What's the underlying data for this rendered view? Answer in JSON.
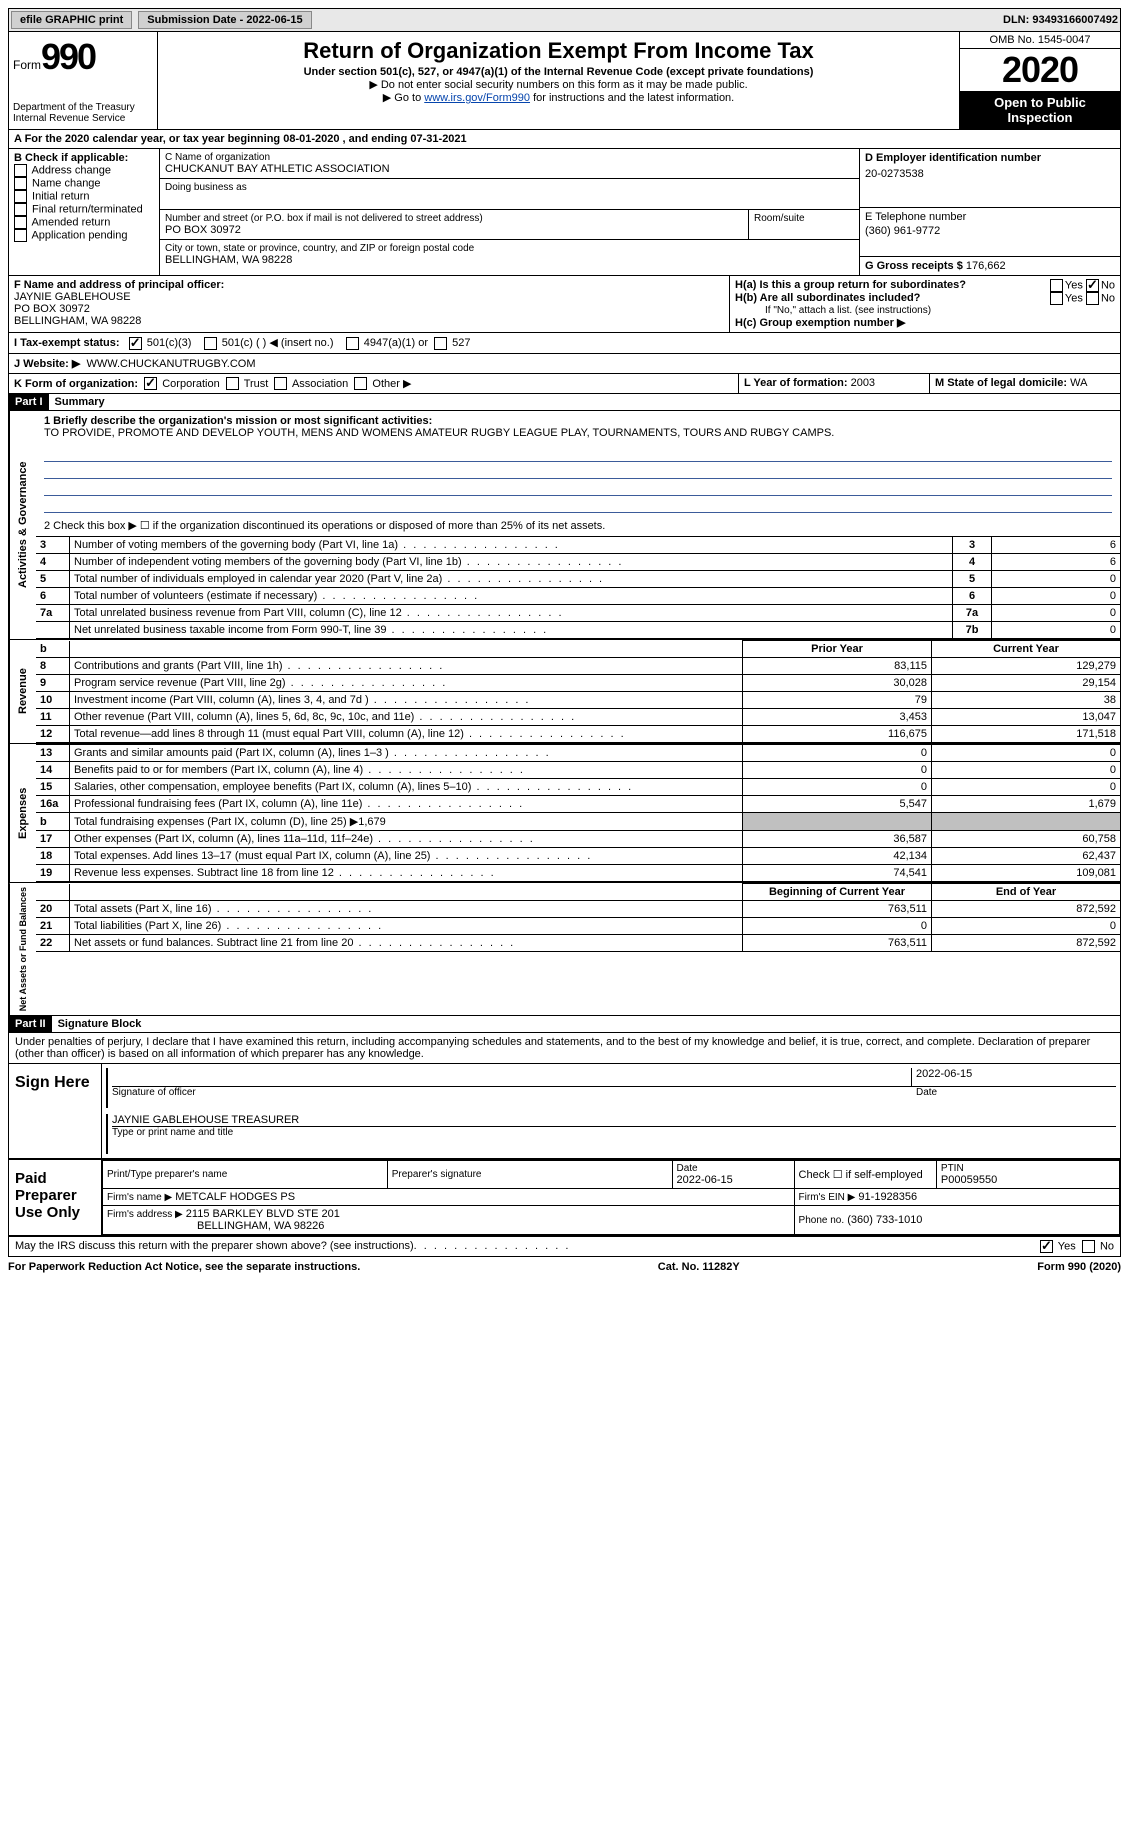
{
  "topbar": {
    "efile_label": "efile GRAPHIC print",
    "submission_label": "Submission Date - 2022-06-15",
    "dln_label": "DLN: 93493166007492"
  },
  "header": {
    "form_word": "Form",
    "form_num": "990",
    "dept": "Department of the Treasury\nInternal Revenue Service",
    "title": "Return of Organization Exempt From Income Tax",
    "subtitle": "Under section 501(c), 527, or 4947(a)(1) of the Internal Revenue Code (except private foundations)",
    "instr1": "▶ Do not enter social security numbers on this form as it may be made public.",
    "instr2_pre": "▶ Go to ",
    "instr2_link": "www.irs.gov/Form990",
    "instr2_post": " for instructions and the latest information.",
    "omb": "OMB No. 1545-0047",
    "taxyear": "2020",
    "open_public": "Open to Public Inspection"
  },
  "period": {
    "text_a": "A For the 2020 calendar year, or tax year beginning ",
    "begin": "08-01-2020",
    "text_b": " , and ending ",
    "end": "07-31-2021"
  },
  "boxB": {
    "label": "B Check if applicable:",
    "items": [
      "Address change",
      "Name change",
      "Initial return",
      "Final return/terminated",
      "Amended return",
      "Application pending"
    ]
  },
  "boxC": {
    "label": "C Name of organization",
    "name": "CHUCKANUT BAY ATHLETIC ASSOCIATION",
    "dba_label": "Doing business as",
    "street_label": "Number and street (or P.O. box if mail is not delivered to street address)",
    "room_label": "Room/suite",
    "street": "PO BOX 30972",
    "city_label": "City or town, state or province, country, and ZIP or foreign postal code",
    "city": "BELLINGHAM, WA  98228"
  },
  "boxD": {
    "label": "D Employer identification number",
    "value": "20-0273538"
  },
  "boxE": {
    "label": "E Telephone number",
    "value": "(360) 961-9772"
  },
  "boxG": {
    "label": "G Gross receipts $",
    "value": "176,662"
  },
  "boxF": {
    "label": "F Name and address of principal officer:",
    "name": "JAYNIE GABLEHOUSE",
    "street": "PO BOX 30972",
    "city": "BELLINGHAM, WA  98228"
  },
  "boxH": {
    "a_label": "H(a)  Is this a group return for subordinates?",
    "b_label": "H(b)  Are all subordinates included?",
    "b_note": "If \"No,\" attach a list. (see instructions)",
    "c_label": "H(c)  Group exemption number ▶",
    "yes": "Yes",
    "no": "No"
  },
  "boxI": {
    "label": "I  Tax-exempt status:",
    "opts": [
      "501(c)(3)",
      "501(c) (  ) ◀ (insert no.)",
      "4947(a)(1) or",
      "527"
    ]
  },
  "boxJ": {
    "label": "J  Website: ▶",
    "value": "WWW.CHUCKANUTRUGBY.COM"
  },
  "boxK": {
    "label": "K Form of organization:",
    "opts": [
      "Corporation",
      "Trust",
      "Association",
      "Other ▶"
    ]
  },
  "boxL": {
    "label": "L Year of formation:",
    "value": "2003"
  },
  "boxM": {
    "label": "M State of legal domicile:",
    "value": "WA"
  },
  "part1": {
    "bar": "Part I",
    "title": "Summary",
    "line1_label": "1  Briefly describe the organization's mission or most significant activities:",
    "mission": "TO PROVIDE, PROMOTE AND DEVELOP YOUTH, MENS AND WOMENS AMATEUR RUGBY LEAGUE PLAY, TOURNAMENTS, TOURS AND RUBGY CAMPS.",
    "line2": "2  Check this box ▶ ☐ if the organization discontinued its operations or disposed of more than 25% of its net assets.",
    "gov_rows": [
      {
        "n": "3",
        "label": "Number of voting members of the governing body (Part VI, line 1a)",
        "box": "3",
        "val": "6"
      },
      {
        "n": "4",
        "label": "Number of independent voting members of the governing body (Part VI, line 1b)",
        "box": "4",
        "val": "6"
      },
      {
        "n": "5",
        "label": "Total number of individuals employed in calendar year 2020 (Part V, line 2a)",
        "box": "5",
        "val": "0"
      },
      {
        "n": "6",
        "label": "Total number of volunteers (estimate if necessary)",
        "box": "6",
        "val": "0"
      },
      {
        "n": "7a",
        "label": "Total unrelated business revenue from Part VIII, column (C), line 12",
        "box": "7a",
        "val": "0"
      },
      {
        "n": "",
        "label": "Net unrelated business taxable income from Form 990-T, line 39",
        "box": "7b",
        "val": "0"
      }
    ],
    "col_prior": "Prior Year",
    "col_current": "Current Year",
    "col_begin": "Beginning of Current Year",
    "col_end": "End of Year",
    "rev_label": "Revenue",
    "exp_label": "Expenses",
    "net_label": "Net Assets or Fund Balances",
    "gov_label": "Activities & Governance",
    "rev_rows": [
      {
        "n": "8",
        "label": "Contributions and grants (Part VIII, line 1h)",
        "py": "83,115",
        "cy": "129,279"
      },
      {
        "n": "9",
        "label": "Program service revenue (Part VIII, line 2g)",
        "py": "30,028",
        "cy": "29,154"
      },
      {
        "n": "10",
        "label": "Investment income (Part VIII, column (A), lines 3, 4, and 7d )",
        "py": "79",
        "cy": "38"
      },
      {
        "n": "11",
        "label": "Other revenue (Part VIII, column (A), lines 5, 6d, 8c, 9c, 10c, and 11e)",
        "py": "3,453",
        "cy": "13,047"
      },
      {
        "n": "12",
        "label": "Total revenue—add lines 8 through 11 (must equal Part VIII, column (A), line 12)",
        "py": "116,675",
        "cy": "171,518"
      }
    ],
    "exp_rows": [
      {
        "n": "13",
        "label": "Grants and similar amounts paid (Part IX, column (A), lines 1–3 )",
        "py": "0",
        "cy": "0"
      },
      {
        "n": "14",
        "label": "Benefits paid to or for members (Part IX, column (A), line 4)",
        "py": "0",
        "cy": "0"
      },
      {
        "n": "15",
        "label": "Salaries, other compensation, employee benefits (Part IX, column (A), lines 5–10)",
        "py": "0",
        "cy": "0"
      },
      {
        "n": "16a",
        "label": "Professional fundraising fees (Part IX, column (A), line 11e)",
        "py": "5,547",
        "cy": "1,679"
      },
      {
        "n": "b",
        "label": "Total fundraising expenses (Part IX, column (D), line 25) ▶1,679",
        "py": "",
        "cy": "",
        "shade": true
      },
      {
        "n": "17",
        "label": "Other expenses (Part IX, column (A), lines 11a–11d, 11f–24e)",
        "py": "36,587",
        "cy": "60,758"
      },
      {
        "n": "18",
        "label": "Total expenses. Add lines 13–17 (must equal Part IX, column (A), line 25)",
        "py": "42,134",
        "cy": "62,437"
      },
      {
        "n": "19",
        "label": "Revenue less expenses. Subtract line 18 from line 12",
        "py": "74,541",
        "cy": "109,081"
      }
    ],
    "net_rows": [
      {
        "n": "20",
        "label": "Total assets (Part X, line 16)",
        "py": "763,511",
        "cy": "872,592"
      },
      {
        "n": "21",
        "label": "Total liabilities (Part X, line 26)",
        "py": "0",
        "cy": "0"
      },
      {
        "n": "22",
        "label": "Net assets or fund balances. Subtract line 21 from line 20",
        "py": "763,511",
        "cy": "872,592"
      }
    ]
  },
  "part2": {
    "bar": "Part II",
    "title": "Signature Block",
    "decl": "Under penalties of perjury, I declare that I have examined this return, including accompanying schedules and statements, and to the best of my knowledge and belief, it is true, correct, and complete. Declaration of preparer (other than officer) is based on all information of which preparer has any knowledge.",
    "sign_here": "Sign Here",
    "sig_officer_label": "Signature of officer",
    "sig_date_label": "Date",
    "sig_date": "2022-06-15",
    "officer_name": "JAYNIE GABLEHOUSE  TREASURER",
    "officer_name_label": "Type or print name and title",
    "paid_label": "Paid Preparer Use Only",
    "prep_name_label": "Print/Type preparer's name",
    "prep_sig_label": "Preparer's signature",
    "prep_date_label": "Date",
    "prep_date": "2022-06-15",
    "self_emp_label": "Check ☐ if self-employed",
    "ptin_label": "PTIN",
    "ptin": "P00059550",
    "firm_name_label": "Firm's name  ▶",
    "firm_name": "METCALF HODGES PS",
    "firm_ein_label": "Firm's EIN ▶",
    "firm_ein": "91-1928356",
    "firm_addr_label": "Firm's address ▶",
    "firm_addr": "2115 BARKLEY BLVD STE 201",
    "firm_city": "BELLINGHAM, WA  98226",
    "firm_phone_label": "Phone no.",
    "firm_phone": "(360) 733-1010",
    "discuss": "May the IRS discuss this return with the preparer shown above? (see instructions)",
    "yes": "Yes",
    "no": "No"
  },
  "footer": {
    "left": "For Paperwork Reduction Act Notice, see the separate instructions.",
    "center": "Cat. No. 11282Y",
    "right": "Form 990 (2020)"
  }
}
